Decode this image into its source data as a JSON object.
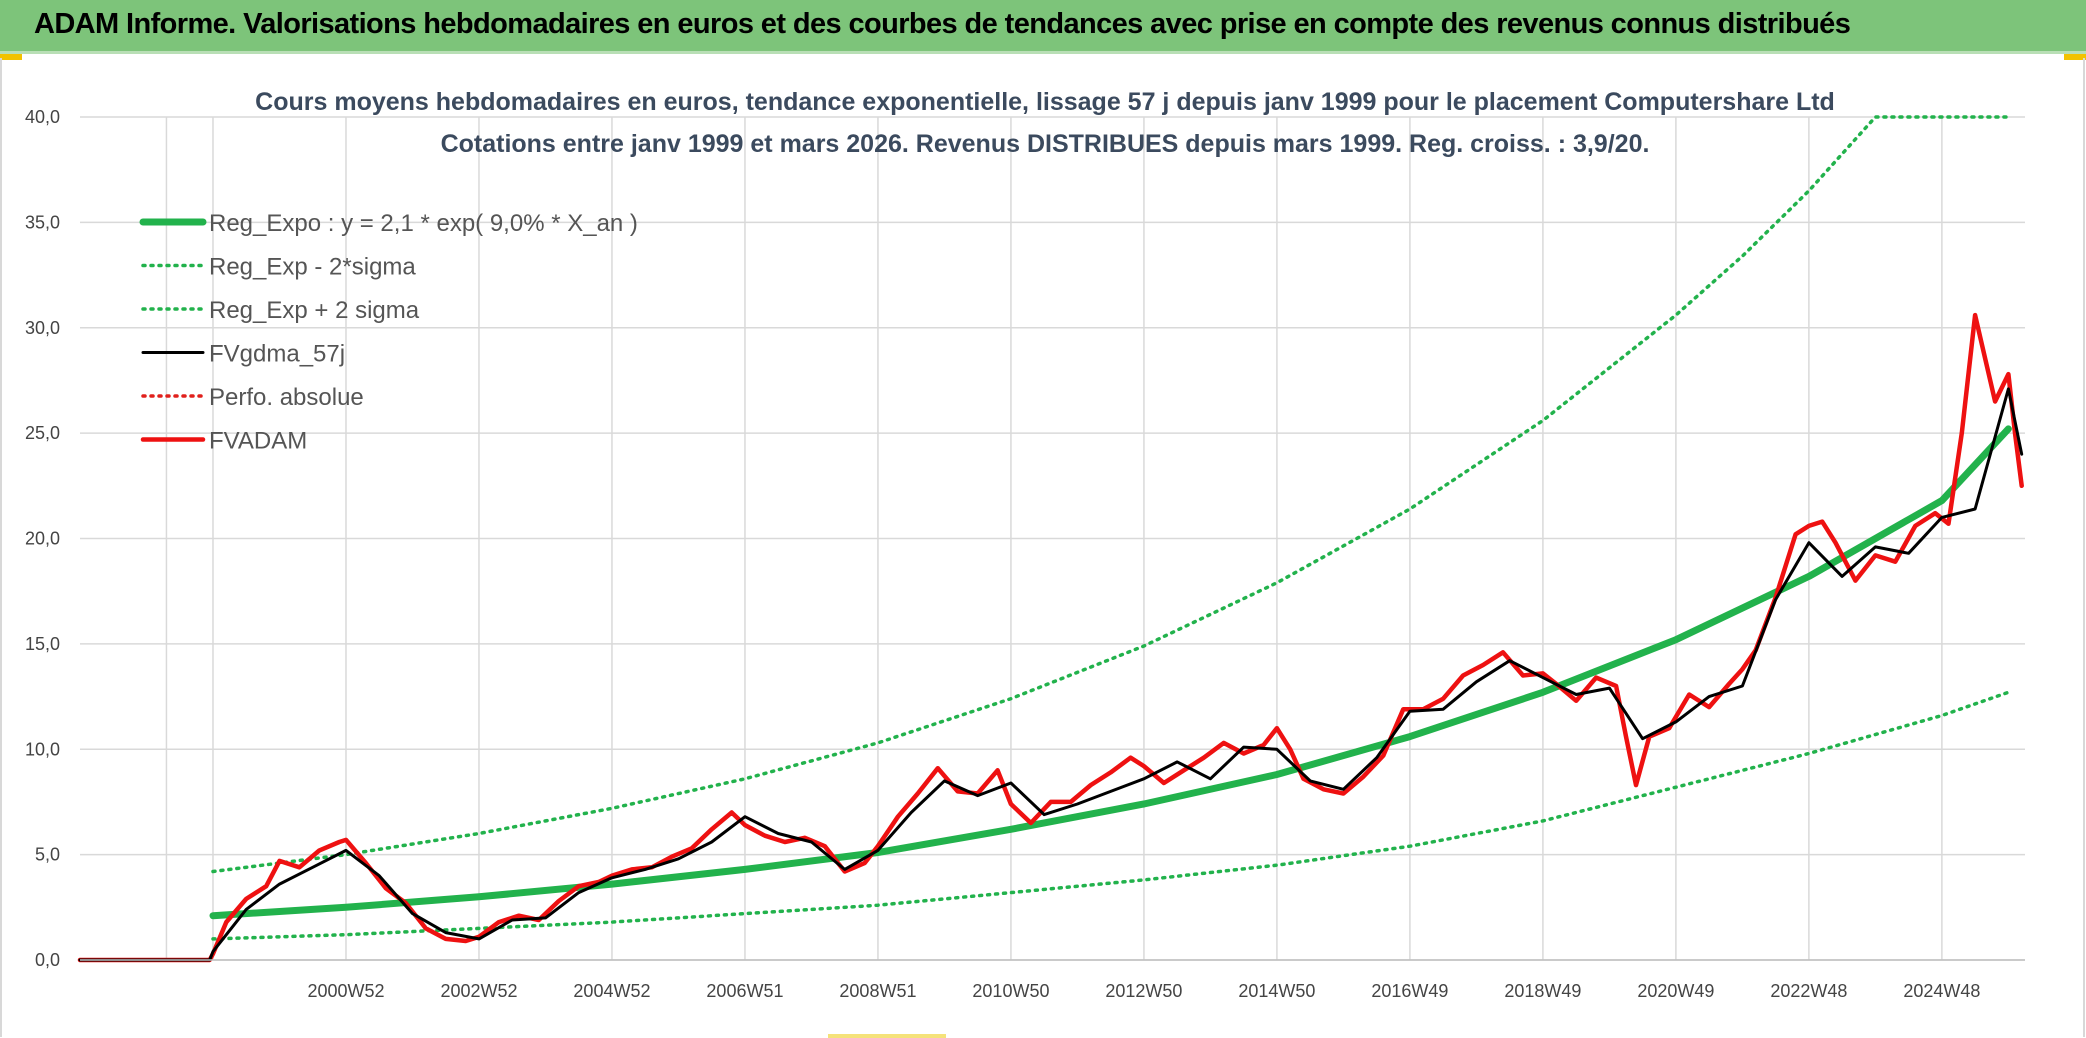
{
  "banner": {
    "title": "ADAM Informe. Valorisations hebdomadaires en euros et des courbes de tendances avec prise en compte des revenus connus distribués"
  },
  "colors": {
    "banner": "#7dc47a",
    "reg_expo": "#22b24c",
    "sigma": "#22b24c",
    "fvgdma": "#000000",
    "perfo": "#e0201c",
    "fvadam": "#ee1111",
    "grid": "#d9d9d9"
  },
  "chart_data": {
    "type": "line",
    "title_lines": [
      "Cours moyens hebdomadaires en euros, tendance exponentielle, lissage 57 j depuis janv 1999 pour le placement Computershare Ltd",
      "Cotations entre janv 1999 et mars 2026. Revenus DISTRIBUES depuis mars 1999. Reg. croiss. : 3,9/20."
    ],
    "ylim": [
      0,
      40
    ],
    "xlim": [
      1997.0,
      2026.25
    ],
    "y_ticks": [
      "0,0",
      "5,0",
      "10,0",
      "15,0",
      "20,0",
      "25,0",
      "30,0",
      "35,0",
      "40,0"
    ],
    "x_ticks": [
      {
        "label": "2000W52",
        "x": 2001.0
      },
      {
        "label": "2002W52",
        "x": 2003.0
      },
      {
        "label": "2004W52",
        "x": 2005.0
      },
      {
        "label": "2006W51",
        "x": 2007.0
      },
      {
        "label": "2008W51",
        "x": 2009.0
      },
      {
        "label": "2010W50",
        "x": 2011.0
      },
      {
        "label": "2012W50",
        "x": 2013.0
      },
      {
        "label": "2014W50",
        "x": 2015.0
      },
      {
        "label": "2016W49",
        "x": 2017.0
      },
      {
        "label": "2018W49",
        "x": 2019.0
      },
      {
        "label": "2020W49",
        "x": 2021.0
      },
      {
        "label": "2022W48",
        "x": 2023.0
      },
      {
        "label": "2024W48",
        "x": 2025.0
      }
    ],
    "grid": true,
    "legend_position": "top-left",
    "series": [
      {
        "name": "Reg_Expo : y = 2,1 * exp( 9,0% *  X_an )",
        "style": "thick-solid",
        "color": "#22b24c",
        "x": [
          1999.0,
          2001.0,
          2003.0,
          2005.0,
          2007.0,
          2009.0,
          2011.0,
          2013.0,
          2015.0,
          2017.0,
          2019.0,
          2021.0,
          2023.0,
          2025.0,
          2026.0
        ],
        "values": [
          2.1,
          2.5,
          3.0,
          3.6,
          4.3,
          5.1,
          6.2,
          7.4,
          8.8,
          10.6,
          12.7,
          15.2,
          18.2,
          21.8,
          25.2
        ]
      },
      {
        "name": "Reg_Exp - 2*sigma",
        "style": "dotted",
        "color": "#22b24c",
        "x": [
          1999.0,
          2001.0,
          2003.0,
          2005.0,
          2007.0,
          2009.0,
          2011.0,
          2013.0,
          2015.0,
          2017.0,
          2019.0,
          2021.0,
          2023.0,
          2025.0,
          2026.0
        ],
        "values": [
          1.0,
          1.2,
          1.5,
          1.8,
          2.2,
          2.6,
          3.2,
          3.8,
          4.5,
          5.4,
          6.6,
          8.2,
          9.8,
          11.6,
          12.7
        ]
      },
      {
        "name": "Reg_Exp + 2 sigma",
        "style": "dotted",
        "color": "#22b24c",
        "x": [
          1999.0,
          2001.0,
          2003.0,
          2005.0,
          2007.0,
          2009.0,
          2011.0,
          2013.0,
          2015.0,
          2017.0,
          2019.0,
          2021.0,
          2022.0,
          2023.0,
          2024.0,
          2026.0
        ],
        "values": [
          4.2,
          5.0,
          6.0,
          7.2,
          8.6,
          10.3,
          12.4,
          14.9,
          17.9,
          21.4,
          25.6,
          30.6,
          33.4,
          36.5,
          40.0,
          40.0
        ]
      },
      {
        "name": "FVgdma_57j",
        "style": "solid",
        "color": "#000000",
        "x": [
          1997.0,
          1998.95,
          1999.0,
          1999.5,
          2000.0,
          2000.5,
          2001.0,
          2001.5,
          2002.0,
          2002.5,
          2003.0,
          2003.5,
          2004.0,
          2004.5,
          2005.0,
          2005.5,
          2006.0,
          2006.5,
          2007.0,
          2007.5,
          2008.0,
          2008.5,
          2009.0,
          2009.5,
          2010.0,
          2010.5,
          2011.0,
          2011.5,
          2012.0,
          2012.5,
          2013.0,
          2013.5,
          2014.0,
          2014.5,
          2015.0,
          2015.5,
          2016.0,
          2016.5,
          2017.0,
          2017.5,
          2018.0,
          2018.5,
          2019.0,
          2019.5,
          2020.0,
          2020.5,
          2021.0,
          2021.5,
          2022.0,
          2022.5,
          2023.0,
          2023.5,
          2024.0,
          2024.5,
          2025.0,
          2025.5,
          2026.0,
          2026.2
        ],
        "values": [
          0.0,
          0.0,
          0.4,
          2.4,
          3.6,
          4.4,
          5.2,
          4.0,
          2.2,
          1.3,
          1.0,
          1.9,
          2.0,
          3.2,
          3.9,
          4.3,
          4.8,
          5.6,
          6.8,
          6.0,
          5.6,
          4.3,
          5.2,
          7.0,
          8.5,
          7.8,
          8.4,
          6.9,
          7.4,
          8.0,
          8.6,
          9.4,
          8.6,
          10.1,
          10.0,
          8.5,
          8.1,
          9.6,
          11.8,
          11.9,
          13.2,
          14.2,
          13.4,
          12.6,
          12.9,
          10.5,
          11.3,
          12.5,
          13.0,
          17.1,
          19.8,
          18.2,
          19.6,
          19.3,
          21.0,
          21.4,
          27.1,
          24.0
        ]
      },
      {
        "name": "Perfo. absolue",
        "style": "dotted",
        "color": "#e0201c",
        "values": []
      },
      {
        "name": "FVADAM",
        "style": "thick-solid",
        "color": "#ee1111",
        "x": [
          1997.0,
          1998.95,
          1999.0,
          1999.2,
          1999.5,
          1999.8,
          2000.0,
          2000.3,
          2000.6,
          2000.9,
          2001.0,
          2001.3,
          2001.6,
          2001.9,
          2002.2,
          2002.5,
          2002.8,
          2003.0,
          2003.3,
          2003.6,
          2003.9,
          2004.2,
          2004.5,
          2004.8,
          2005.0,
          2005.3,
          2005.6,
          2005.9,
          2006.2,
          2006.5,
          2006.8,
          2007.0,
          2007.3,
          2007.6,
          2007.9,
          2008.2,
          2008.5,
          2008.8,
          2009.0,
          2009.3,
          2009.6,
          2009.9,
          2010.2,
          2010.5,
          2010.8,
          2011.0,
          2011.3,
          2011.6,
          2011.9,
          2012.2,
          2012.5,
          2012.8,
          2013.0,
          2013.3,
          2013.6,
          2013.9,
          2014.2,
          2014.5,
          2014.8,
          2015.0,
          2015.2,
          2015.4,
          2015.7,
          2016.0,
          2016.3,
          2016.6,
          2016.9,
          2017.2,
          2017.5,
          2017.8,
          2018.1,
          2018.4,
          2018.7,
          2019.0,
          2019.2,
          2019.5,
          2019.8,
          2020.1,
          2020.25,
          2020.4,
          2020.6,
          2020.9,
          2021.2,
          2021.5,
          2021.8,
          2022.0,
          2022.2,
          2022.5,
          2022.8,
          2023.0,
          2023.2,
          2023.4,
          2023.7,
          2024.0,
          2024.3,
          2024.6,
          2024.9,
          2025.1,
          2025.3,
          2025.5,
          2025.8,
          2026.0,
          2026.1,
          2026.2
        ],
        "values": [
          0.0,
          0.0,
          0.3,
          1.8,
          2.9,
          3.5,
          4.7,
          4.4,
          5.2,
          5.6,
          5.7,
          4.6,
          3.4,
          2.7,
          1.5,
          1.0,
          0.9,
          1.1,
          1.8,
          2.1,
          1.9,
          2.8,
          3.5,
          3.7,
          4.0,
          4.3,
          4.4,
          4.9,
          5.3,
          6.2,
          7.0,
          6.4,
          5.9,
          5.6,
          5.8,
          5.4,
          4.2,
          4.6,
          5.4,
          6.8,
          7.9,
          9.1,
          8.0,
          7.9,
          9.0,
          7.4,
          6.5,
          7.5,
          7.5,
          8.3,
          8.9,
          9.6,
          9.2,
          8.4,
          9.0,
          9.6,
          10.3,
          9.8,
          10.2,
          11.0,
          10.0,
          8.6,
          8.1,
          7.9,
          8.7,
          9.7,
          11.9,
          11.9,
          12.4,
          13.5,
          14.0,
          14.6,
          13.5,
          13.6,
          13.1,
          12.3,
          13.4,
          13.0,
          10.6,
          8.3,
          10.6,
          11.0,
          12.6,
          12.0,
          13.1,
          13.8,
          14.7,
          17.2,
          20.2,
          20.6,
          20.8,
          19.8,
          18.0,
          19.2,
          18.9,
          20.6,
          21.2,
          20.7,
          25.0,
          30.6,
          26.5,
          27.8,
          25.0,
          22.5
        ]
      }
    ]
  }
}
